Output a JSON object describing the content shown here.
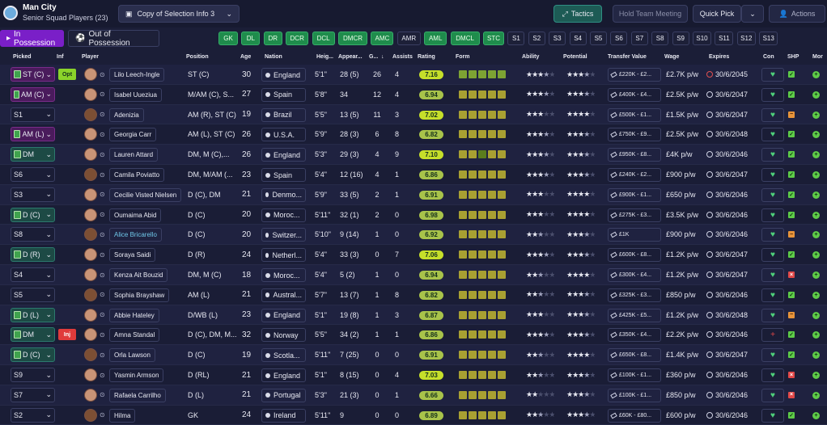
{
  "header": {
    "team_name": "Man City",
    "squad_name": "Senior Squad Players (23)",
    "selection_dropdown": "Copy of Selection Info 3",
    "tactics_label": "Tactics",
    "hold_meeting_label": "Hold Team Meeting",
    "quick_pick_label": "Quick Pick",
    "actions_label": "Actions"
  },
  "tabs": {
    "in_possession": "In Possession",
    "out_of_possession": "Out of Possession"
  },
  "position_buttons": [
    {
      "label": "GK",
      "active": true
    },
    {
      "label": "DL",
      "active": true
    },
    {
      "label": "DR",
      "active": true
    },
    {
      "label": "DCR",
      "active": true
    },
    {
      "label": "DCL",
      "active": true
    },
    {
      "label": "DMCR",
      "active": true
    },
    {
      "label": "AMC",
      "active": true
    },
    {
      "label": "AMR",
      "active": false
    },
    {
      "label": "AML",
      "active": true
    },
    {
      "label": "DMCL",
      "active": true
    },
    {
      "label": "STC",
      "active": true
    },
    {
      "label": "S1",
      "active": false
    },
    {
      "label": "S2",
      "active": false
    },
    {
      "label": "S3",
      "active": false
    },
    {
      "label": "S4",
      "active": false
    },
    {
      "label": "S5",
      "active": false
    },
    {
      "label": "S6",
      "active": false
    },
    {
      "label": "S7",
      "active": false
    },
    {
      "label": "S8",
      "active": false
    },
    {
      "label": "S9",
      "active": false
    },
    {
      "label": "S10",
      "active": false
    },
    {
      "label": "S11",
      "active": false
    },
    {
      "label": "S12",
      "active": false
    },
    {
      "label": "S13",
      "active": false
    }
  ],
  "columns": {
    "picked": "Picked",
    "inf": "Inf",
    "player": "Player",
    "position": "Position",
    "age": "Age",
    "nation": "Nation",
    "height": "Heig...",
    "apps": "Appear...",
    "goals": "G...",
    "assists": "Assists",
    "rating": "Rating",
    "form": "Form",
    "ability": "Ability",
    "potential": "Potential",
    "transfer_value": "Transfer Value",
    "wage": "Wage",
    "expires": "Expires",
    "con": "Con",
    "shp": "SHP",
    "mor": "Mor"
  },
  "players": [
    {
      "picked": "ST (C)",
      "picked_style": "purple",
      "inf": "Opt",
      "name": "Lilo Leech-Ingle",
      "position": "ST (C)",
      "age": "30",
      "nation": "England",
      "height": "5'1\"",
      "apps": "28 (5)",
      "goals": "26",
      "assists": "4",
      "rating": "7.16",
      "form": [
        "g",
        "g",
        "g",
        "g",
        "g"
      ],
      "ability": 3.5,
      "potential": 3.5,
      "value": "£220K - £2...",
      "wage": "£2.7K p/w",
      "expires": "30/6/2045",
      "expires_warn": true,
      "con": "♥",
      "shp": "ok",
      "mor": "+"
    },
    {
      "picked": "AM (C)",
      "picked_style": "purple",
      "inf": "",
      "name": "Isabel Uueziua",
      "position": "M/AM (C), S...",
      "age": "27",
      "nation": "Spain",
      "height": "5'8\"",
      "apps": "34",
      "goals": "12",
      "assists": "4",
      "rating": "6.94",
      "form": [
        "y",
        "y",
        "y",
        "y",
        "y"
      ],
      "ability": 3.5,
      "potential": 3.5,
      "value": "£400K - £4...",
      "wage": "£2.5K p/w",
      "expires": "30/6/2047",
      "expires_warn": false,
      "con": "♥",
      "shp": "ok",
      "mor": "+"
    },
    {
      "picked": "S1",
      "picked_style": "none",
      "inf": "",
      "name": "Adenizia",
      "position": "AM (R), ST (C)",
      "age": "19",
      "nation": "Brazil",
      "height": "5'5\"",
      "apps": "13 (5)",
      "goals": "11",
      "assists": "3",
      "rating": "7.02",
      "form": [
        "y",
        "y",
        "y",
        "y",
        "y"
      ],
      "ability": 3,
      "potential": 4,
      "value": "£500K - £1...",
      "wage": "£1.5K p/w",
      "expires": "30/6/2047",
      "expires_warn": false,
      "con": "♥",
      "shp": "warn",
      "mor": "+"
    },
    {
      "picked": "AM (L)",
      "picked_style": "purple",
      "inf": "",
      "name": "Georgia Carr",
      "position": "AM (L), ST (C)",
      "age": "26",
      "nation": "U.S.A.",
      "height": "5'9\"",
      "apps": "28 (3)",
      "goals": "6",
      "assists": "8",
      "rating": "6.82",
      "form": [
        "y",
        "y",
        "y",
        "y",
        "y"
      ],
      "ability": 3.5,
      "potential": 3.5,
      "value": "£750K - £9...",
      "wage": "£2.5K p/w",
      "expires": "30/6/2048",
      "expires_warn": false,
      "con": "♥",
      "shp": "ok",
      "mor": "+"
    },
    {
      "picked": "DM",
      "picked_style": "green",
      "inf": "",
      "name": "Lauren Attard",
      "position": "DM, M (C),...",
      "age": "26",
      "nation": "England",
      "height": "5'3\"",
      "apps": "29 (3)",
      "goals": "4",
      "assists": "9",
      "rating": "7.10",
      "form": [
        "y",
        "y",
        "g",
        "y",
        "y"
      ],
      "ability": 3.5,
      "potential": 3.5,
      "value": "£950K - £8...",
      "wage": "£4K p/w",
      "expires": "30/6/2046",
      "expires_warn": false,
      "con": "♥",
      "shp": "ok",
      "mor": "+"
    },
    {
      "picked": "S6",
      "picked_style": "none",
      "inf": "",
      "name": "Camila Poviatto",
      "position": "DM, M/AM (...",
      "age": "23",
      "nation": "Spain",
      "height": "5'4\"",
      "apps": "12 (16)",
      "goals": "4",
      "assists": "1",
      "rating": "6.86",
      "form": [
        "y",
        "y",
        "y",
        "y",
        "y"
      ],
      "ability": 3.5,
      "potential": 3.5,
      "value": "£240K - £2...",
      "wage": "£900 p/w",
      "expires": "30/6/2047",
      "expires_warn": false,
      "con": "♥",
      "shp": "ok",
      "mor": "+"
    },
    {
      "picked": "S3",
      "picked_style": "none",
      "inf": "",
      "name": "Cecilie Visted Nielsen",
      "position": "D (C), DM",
      "age": "21",
      "nation": "Denmo...",
      "height": "5'9\"",
      "apps": "33 (5)",
      "goals": "2",
      "assists": "1",
      "rating": "6.91",
      "form": [
        "y",
        "y",
        "y",
        "y",
        "y"
      ],
      "ability": 3,
      "potential": 4,
      "value": "£900K - £1...",
      "wage": "£650 p/w",
      "expires": "30/6/2046",
      "expires_warn": false,
      "con": "♥",
      "shp": "ok",
      "mor": "+"
    },
    {
      "picked": "D (C)",
      "picked_style": "green",
      "inf": "",
      "name": "Oumaima Abid",
      "position": "D (C)",
      "age": "20",
      "nation": "Moroc...",
      "height": "5'11\"",
      "apps": "32 (1)",
      "goals": "2",
      "assists": "0",
      "rating": "6.98",
      "form": [
        "y",
        "y",
        "y",
        "y",
        "y"
      ],
      "ability": 3,
      "potential": 4,
      "value": "£275K - £3...",
      "wage": "£3.5K p/w",
      "expires": "30/6/2046",
      "expires_warn": false,
      "con": "♥",
      "shp": "ok",
      "mor": "+"
    },
    {
      "picked": "S8",
      "picked_style": "none",
      "inf": "",
      "name": "Alice Bricarello",
      "name_link": true,
      "position": "D (C)",
      "age": "20",
      "nation": "Switzer...",
      "height": "5'10\"",
      "apps": "9 (14)",
      "goals": "1",
      "assists": "0",
      "rating": "6.92",
      "form": [
        "y",
        "y",
        "y",
        "y",
        "y"
      ],
      "ability": 2.5,
      "potential": 3.5,
      "value": "£1K",
      "wage": "£900 p/w",
      "expires": "30/6/2046",
      "expires_warn": false,
      "con": "♥",
      "shp": "warn",
      "mor": "+"
    },
    {
      "picked": "D (R)",
      "picked_style": "green",
      "inf": "",
      "name": "Soraya Saidi",
      "position": "D (R)",
      "age": "24",
      "nation": "Netherl...",
      "height": "5'4\"",
      "apps": "33 (3)",
      "goals": "0",
      "assists": "7",
      "rating": "7.06",
      "form": [
        "y",
        "y",
        "y",
        "y",
        "y"
      ],
      "ability": 3.5,
      "potential": 3.5,
      "value": "£600K - £8...",
      "wage": "£1.2K p/w",
      "expires": "30/6/2047",
      "expires_warn": false,
      "con": "♥",
      "shp": "ok",
      "mor": "+"
    },
    {
      "picked": "S4",
      "picked_style": "none",
      "inf": "",
      "name": "Kenza Ait Bouzid",
      "position": "DM, M (C)",
      "age": "18",
      "nation": "Moroc...",
      "height": "5'4\"",
      "apps": "5 (2)",
      "goals": "1",
      "assists": "0",
      "rating": "6.94",
      "form": [
        "y",
        "y",
        "y",
        "y",
        "y"
      ],
      "ability": 2.5,
      "potential": 4,
      "value": "£300K - £4...",
      "wage": "£1.2K p/w",
      "expires": "30/6/2047",
      "expires_warn": false,
      "con": "♥",
      "shp": "bad",
      "mor": "+"
    },
    {
      "picked": "S5",
      "picked_style": "none",
      "inf": "",
      "name": "Sophia Brayshaw",
      "position": "AM (L)",
      "age": "21",
      "nation": "Austral...",
      "height": "5'7\"",
      "apps": "13 (7)",
      "goals": "1",
      "assists": "8",
      "rating": "6.82",
      "form": [
        "y",
        "y",
        "y",
        "y",
        "y"
      ],
      "ability": 2.5,
      "potential": 3.5,
      "value": "£325K - £3...",
      "wage": "£850 p/w",
      "expires": "30/6/2046",
      "expires_warn": false,
      "con": "♥",
      "shp": "ok",
      "mor": "+"
    },
    {
      "picked": "D (L)",
      "picked_style": "green",
      "inf": "",
      "name": "Abbie Hateley",
      "position": "D/WB (L)",
      "age": "23",
      "nation": "England",
      "height": "5'1\"",
      "apps": "19 (8)",
      "goals": "1",
      "assists": "3",
      "rating": "6.87",
      "form": [
        "y",
        "y",
        "y",
        "y",
        "y"
      ],
      "ability": 3,
      "potential": 3.5,
      "value": "£425K - £5...",
      "wage": "£1.2K p/w",
      "expires": "30/6/2048",
      "expires_warn": false,
      "con": "♥",
      "shp": "warn",
      "mor": "+"
    },
    {
      "picked": "DM",
      "picked_style": "green",
      "inf": "Inj",
      "name": "Amna Standal",
      "position": "D (C), DM, M...",
      "age": "32",
      "nation": "Norway",
      "height": "5'5\"",
      "apps": "34 (2)",
      "goals": "1",
      "assists": "1",
      "rating": "6.86",
      "form": [
        "y",
        "y",
        "y",
        "y",
        "y"
      ],
      "ability": 3.5,
      "potential": 3.5,
      "value": "£350K - £4...",
      "wage": "£2.2K p/w",
      "expires": "30/6/2046",
      "expires_warn": false,
      "con": "+",
      "shp": "ok",
      "mor": "+"
    },
    {
      "picked": "D (C)",
      "picked_style": "green",
      "inf": "",
      "name": "Orla Lawson",
      "position": "D (C)",
      "age": "19",
      "nation": "Scotla...",
      "height": "5'11\"",
      "apps": "7 (25)",
      "goals": "0",
      "assists": "0",
      "rating": "6.91",
      "form": [
        "y",
        "y",
        "y",
        "y",
        "y"
      ],
      "ability": 2.5,
      "potential": 4,
      "value": "£650K - £8...",
      "wage": "£1.4K p/w",
      "expires": "30/6/2047",
      "expires_warn": false,
      "con": "♥",
      "shp": "ok",
      "mor": "+"
    },
    {
      "picked": "S9",
      "picked_style": "none",
      "inf": "",
      "name": "Yasmin Armson",
      "position": "D (RL)",
      "age": "21",
      "nation": "England",
      "height": "5'1\"",
      "apps": "8 (15)",
      "goals": "0",
      "assists": "4",
      "rating": "7.03",
      "form": [
        "y",
        "y",
        "y",
        "y",
        "y"
      ],
      "ability": 2.5,
      "potential": 3.5,
      "value": "£100K - £1...",
      "wage": "£360 p/w",
      "expires": "30/6/2046",
      "expires_warn": false,
      "con": "♥",
      "shp": "bad",
      "mor": "+"
    },
    {
      "picked": "S7",
      "picked_style": "none",
      "inf": "",
      "name": "Rafaela Carrilho",
      "position": "D (L)",
      "age": "21",
      "nation": "Portugal",
      "height": "5'3\"",
      "apps": "21 (3)",
      "goals": "0",
      "assists": "1",
      "rating": "6.66",
      "form": [
        "y",
        "y",
        "y",
        "y",
        "y"
      ],
      "ability": 2,
      "potential": 3.5,
      "value": "£100K - £1...",
      "wage": "£850 p/w",
      "expires": "30/6/2046",
      "expires_warn": false,
      "con": "♥",
      "shp": "bad",
      "mor": "+"
    },
    {
      "picked": "S2",
      "picked_style": "none",
      "inf": "",
      "name": "Hilma",
      "position": "GK",
      "age": "24",
      "nation": "Ireland",
      "height": "5'11\"",
      "apps": "9",
      "goals": "0",
      "assists": "0",
      "rating": "6.89",
      "form": [
        "y",
        "y",
        "y",
        "y",
        "y"
      ],
      "ability": 2.5,
      "potential": 3.5,
      "value": "£60K - £80...",
      "wage": "£600 p/w",
      "expires": "30/6/2046",
      "expires_warn": false,
      "con": "♥",
      "shp": "ok",
      "mor": "+"
    }
  ]
}
